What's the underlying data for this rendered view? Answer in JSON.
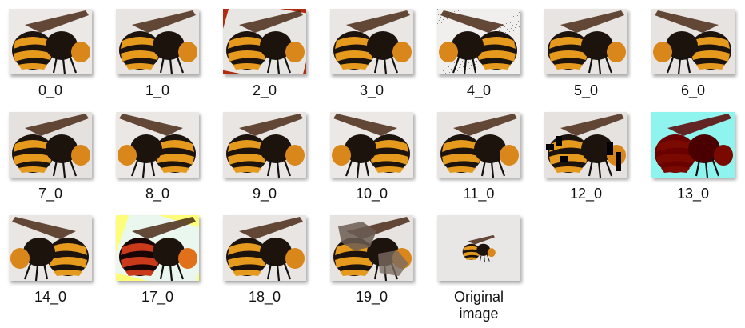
{
  "colors": {
    "bg_light": "#e9e6e3",
    "bg_red": "#b22a0f",
    "stripe_orange": "#e59a1d",
    "body_dark": "#1c130d",
    "wing": "#4a2a18",
    "cyan_bg": "#8ff3ee",
    "dark_red": "#6a0000",
    "yellow_bg": "#fdfd7a"
  },
  "tiles": [
    {
      "label": "0_0",
      "bg": "#ece8e5",
      "flip": 1,
      "variant": "normal"
    },
    {
      "label": "1_0",
      "bg": "#e7e4e1",
      "flip": 1,
      "variant": "normal"
    },
    {
      "label": "2_0",
      "bg": "#b22a0f",
      "flip": 1,
      "variant": "rotated"
    },
    {
      "label": "3_0",
      "bg": "#e9e6e3",
      "flip": 1,
      "variant": "shifted"
    },
    {
      "label": "4_0",
      "bg": "#f0efee",
      "flip": -1,
      "variant": "noise"
    },
    {
      "label": "5_0",
      "bg": "#e8e4e1",
      "flip": 1,
      "variant": "normal"
    },
    {
      "label": "6_0",
      "bg": "#e6e3e0",
      "flip": -1,
      "variant": "normal"
    },
    {
      "label": "7_0",
      "bg": "#e4e1de",
      "flip": 1,
      "variant": "normal"
    },
    {
      "label": "8_0",
      "bg": "#eae7e4",
      "flip": -1,
      "variant": "normal"
    },
    {
      "label": "9_0",
      "bg": "#e8e5e2",
      "flip": 1,
      "variant": "normal"
    },
    {
      "label": "10_0",
      "bg": "#ebe8e5",
      "flip": -1,
      "variant": "normal"
    },
    {
      "label": "11_0",
      "bg": "#e7e4e1",
      "flip": 1,
      "variant": "normal"
    },
    {
      "label": "12_0",
      "bg": "#e5e2df",
      "flip": 1,
      "variant": "erased"
    },
    {
      "label": "13_0",
      "bg": "#8ff3ee",
      "flip": 1,
      "variant": "colored"
    },
    {
      "label": "14_0",
      "bg": "#e9e6e3",
      "flip": -1,
      "variant": "normal"
    },
    {
      "label": "17_0",
      "bg": "#fdfd7a",
      "flip": 1,
      "variant": "yellow"
    },
    {
      "label": "18_0",
      "bg": "#e8e5e2",
      "flip": 1,
      "variant": "normal"
    },
    {
      "label": "19_0",
      "bg": "#e6e3e0",
      "flip": 1,
      "variant": "blotched"
    },
    {
      "label": "Original\nimage",
      "bg": "#e9e7e5",
      "flip": 1,
      "variant": "original"
    }
  ]
}
